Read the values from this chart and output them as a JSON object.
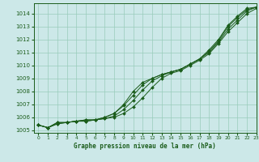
{
  "background_color": "#cce8e8",
  "grid_color": "#99ccbb",
  "line_color": "#1a5c1a",
  "title": "Graphe pression niveau de la mer (hPa)",
  "xlim": [
    -0.5,
    23
  ],
  "ylim": [
    1004.8,
    1014.8
  ],
  "xticks": [
    0,
    1,
    2,
    3,
    4,
    5,
    6,
    7,
    8,
    9,
    10,
    11,
    12,
    13,
    14,
    15,
    16,
    17,
    18,
    19,
    20,
    21,
    22,
    23
  ],
  "yticks": [
    1005,
    1006,
    1007,
    1008,
    1009,
    1010,
    1011,
    1012,
    1013,
    1014
  ],
  "series": [
    [
      1005.4,
      1005.2,
      1005.6,
      1005.6,
      1005.7,
      1005.8,
      1005.8,
      1006.0,
      1006.3,
      1007.0,
      1008.0,
      1008.7,
      1009.0,
      1009.3,
      1009.5,
      1009.7,
      1010.1,
      1010.5,
      1011.2,
      1012.0,
      1013.1,
      1013.8,
      1014.4,
      1014.5
    ],
    [
      1005.4,
      1005.2,
      1005.6,
      1005.6,
      1005.7,
      1005.8,
      1005.8,
      1006.0,
      1006.3,
      1006.9,
      1007.7,
      1008.5,
      1009.0,
      1009.3,
      1009.5,
      1009.7,
      1010.1,
      1010.5,
      1011.1,
      1011.9,
      1013.0,
      1013.7,
      1014.3,
      1014.5
    ],
    [
      1005.4,
      1005.2,
      1005.5,
      1005.6,
      1005.7,
      1005.7,
      1005.8,
      1005.9,
      1006.1,
      1006.6,
      1007.3,
      1008.1,
      1008.8,
      1009.2,
      1009.5,
      1009.7,
      1010.1,
      1010.5,
      1011.0,
      1011.8,
      1012.8,
      1013.5,
      1014.2,
      1014.5
    ],
    [
      1005.4,
      1005.2,
      1005.5,
      1005.6,
      1005.7,
      1005.7,
      1005.8,
      1005.9,
      1006.0,
      1006.3,
      1006.8,
      1007.5,
      1008.3,
      1009.0,
      1009.4,
      1009.6,
      1010.0,
      1010.4,
      1010.9,
      1011.7,
      1012.6,
      1013.3,
      1014.0,
      1014.4
    ]
  ]
}
